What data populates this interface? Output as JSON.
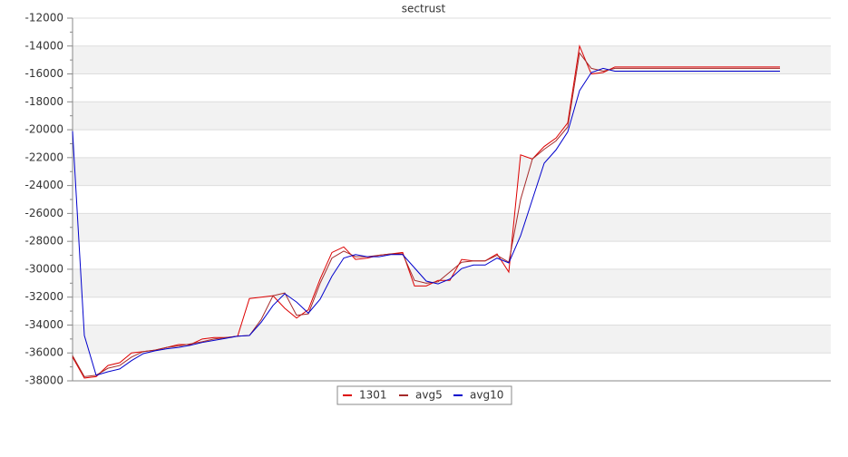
{
  "chart_data": {
    "type": "line",
    "title": "sectrust",
    "categories": [
      null,
      null,
      null,
      null,
      null,
      null,
      null,
      null,
      null,
      null,
      null,
      null,
      null,
      null,
      null,
      null,
      null,
      null,
      null,
      null,
      null,
      null,
      null,
      null,
      null,
      null,
      null,
      null,
      null,
      null,
      null,
      null,
      null,
      null,
      null,
      null,
      null,
      null,
      null,
      null,
      null,
      null,
      null,
      null,
      null,
      null,
      null,
      null,
      null,
      null,
      null,
      null,
      null,
      null,
      null,
      null,
      null,
      null,
      null,
      null,
      null
    ],
    "series": [
      {
        "name": "1301",
        "color": "#dd0000",
        "values": [
          -36300,
          -37800,
          -37700,
          -36900,
          -36700,
          -36000,
          -35900,
          -35800,
          -35600,
          -35400,
          -35400,
          -35000,
          -34900,
          -34900,
          -34800,
          -32100,
          -32000,
          -31900,
          -32800,
          -33500,
          -32900,
          -30700,
          -28800,
          -28400,
          -29300,
          -29200,
          -29000,
          -28900,
          -28800,
          -31200,
          -31200,
          -30800,
          -30800,
          -29300,
          -29400,
          -29400,
          -28900,
          -30200,
          -21800,
          -22100,
          -21200,
          -20600,
          -19500,
          -14000,
          -16000,
          -15900,
          -15500,
          -15500,
          -15500,
          -15500,
          -15500,
          -15500,
          -15500,
          -15500,
          -15500,
          -15500,
          -15500,
          -15500,
          -15500,
          -15500,
          -15500
        ]
      },
      {
        "name": "avg5",
        "color": "#a52a2a",
        "values": [
          -36200,
          -37700,
          -37600,
          -37100,
          -36900,
          -36300,
          -35900,
          -35800,
          -35600,
          -35500,
          -35350,
          -35200,
          -35000,
          -34900,
          -34800,
          -34750,
          -33600,
          -31900,
          -31700,
          -33300,
          -33200,
          -31000,
          -29200,
          -28700,
          -29100,
          -29100,
          -29000,
          -28900,
          -28900,
          -30800,
          -31000,
          -30900,
          -30200,
          -29500,
          -29400,
          -29400,
          -29000,
          -29500,
          -25000,
          -22100,
          -21400,
          -20800,
          -19800,
          -14500,
          -15600,
          -15800,
          -15600,
          -15600,
          -15600,
          -15600,
          -15600,
          -15600,
          -15600,
          -15600,
          -15600,
          -15600,
          -15600,
          -15600,
          -15600,
          -15600,
          -15600
        ]
      },
      {
        "name": "avg10",
        "color": "#0000cc",
        "values": [
          -20100,
          -34750,
          -37600,
          -37350,
          -37150,
          -36550,
          -36050,
          -35850,
          -35700,
          -35600,
          -35450,
          -35250,
          -35100,
          -34950,
          -34800,
          -34750,
          -33800,
          -32600,
          -31750,
          -32350,
          -33150,
          -32150,
          -30500,
          -29200,
          -28950,
          -29100,
          -29100,
          -28950,
          -28950,
          -29900,
          -30850,
          -31050,
          -30700,
          -29950,
          -29700,
          -29700,
          -29200,
          -29550,
          -27600,
          -25000,
          -22400,
          -21450,
          -20150,
          -17200,
          -15900,
          -15600,
          -15800,
          -15800,
          -15800,
          -15800,
          -15800,
          -15800,
          -15800,
          -15800,
          -15800,
          -15800,
          -15800,
          -15800,
          -15800,
          -15800,
          -15800
        ]
      }
    ],
    "ylim": [
      -38000,
      -12000
    ],
    "yticks": [
      -38000,
      -36000,
      -34000,
      -32000,
      -30000,
      -28000,
      -26000,
      -24000,
      -22000,
      -20000,
      -18000,
      -16000,
      -14000,
      -12000
    ],
    "grid": true
  }
}
